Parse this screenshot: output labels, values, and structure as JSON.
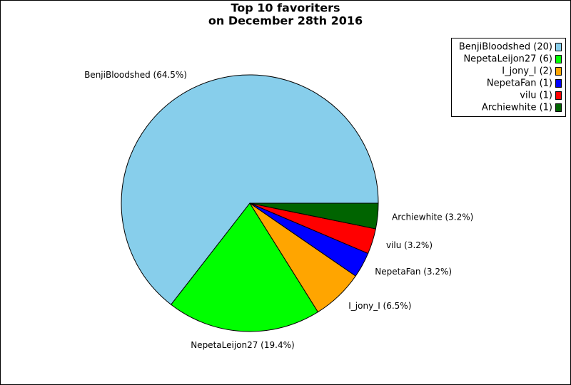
{
  "chart_data": {
    "type": "pie",
    "title": "Top 10 favoriters",
    "subtitle": "on December 28th 2016",
    "categories": [
      "BenjiBloodshed (20)",
      "NepetaLeijon27 (6)",
      "I_jony_I (2)",
      "NepetaFan (1)",
      "vilu (1)",
      "Archiewhite (1)"
    ],
    "values": [
      64.5,
      19.4,
      6.5,
      3.2,
      3.2,
      3.2
    ],
    "value_labels": [
      "BenjiBloodshed (64.5%)",
      "NepetaLeijon27 (19.4%)",
      "I_jony_I (6.5%)",
      "NepetaFan (3.2%)",
      "vilu (3.2%)",
      "Archiewhite (3.2%)"
    ],
    "colors": [
      "#87ceeb",
      "#00ff00",
      "#ffa500",
      "#0000ff",
      "#ff0000",
      "#006400"
    ],
    "legend": "upper right"
  }
}
